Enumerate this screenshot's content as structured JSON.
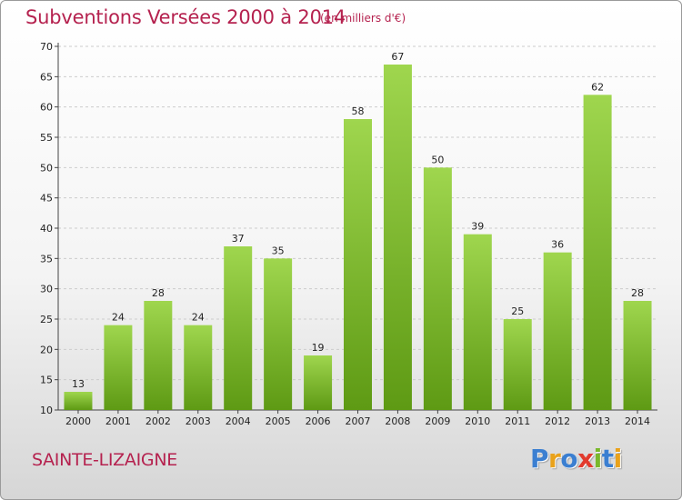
{
  "header": {
    "title": "Subventions Versées 2000 à 2014",
    "subtitle": "(en milliers d'€)"
  },
  "footer": {
    "commune": "SAINTE-LIZAIGNE",
    "logo_text": "Proxiti"
  },
  "colors": {
    "title": "#b5224f",
    "bar_light": "#9fd64e",
    "bar_dark": "#5e9a14",
    "grid": "#cccccc"
  },
  "chart_data": {
    "type": "bar",
    "title": "Subventions Versées 2000 à 2014",
    "subtitle": "(en milliers d'€)",
    "categories": [
      "2000",
      "2001",
      "2002",
      "2003",
      "2004",
      "2005",
      "2006",
      "2007",
      "2008",
      "2009",
      "2010",
      "2011",
      "2012",
      "2013",
      "2014"
    ],
    "values": [
      13,
      24,
      28,
      24,
      37,
      35,
      19,
      58,
      67,
      50,
      39,
      25,
      36,
      62,
      28
    ],
    "ylim": [
      10,
      70
    ],
    "yticks": [
      10,
      15,
      20,
      25,
      30,
      35,
      40,
      45,
      50,
      55,
      60,
      65,
      70
    ],
    "grid": "horizontal dashed",
    "legend": "none"
  }
}
